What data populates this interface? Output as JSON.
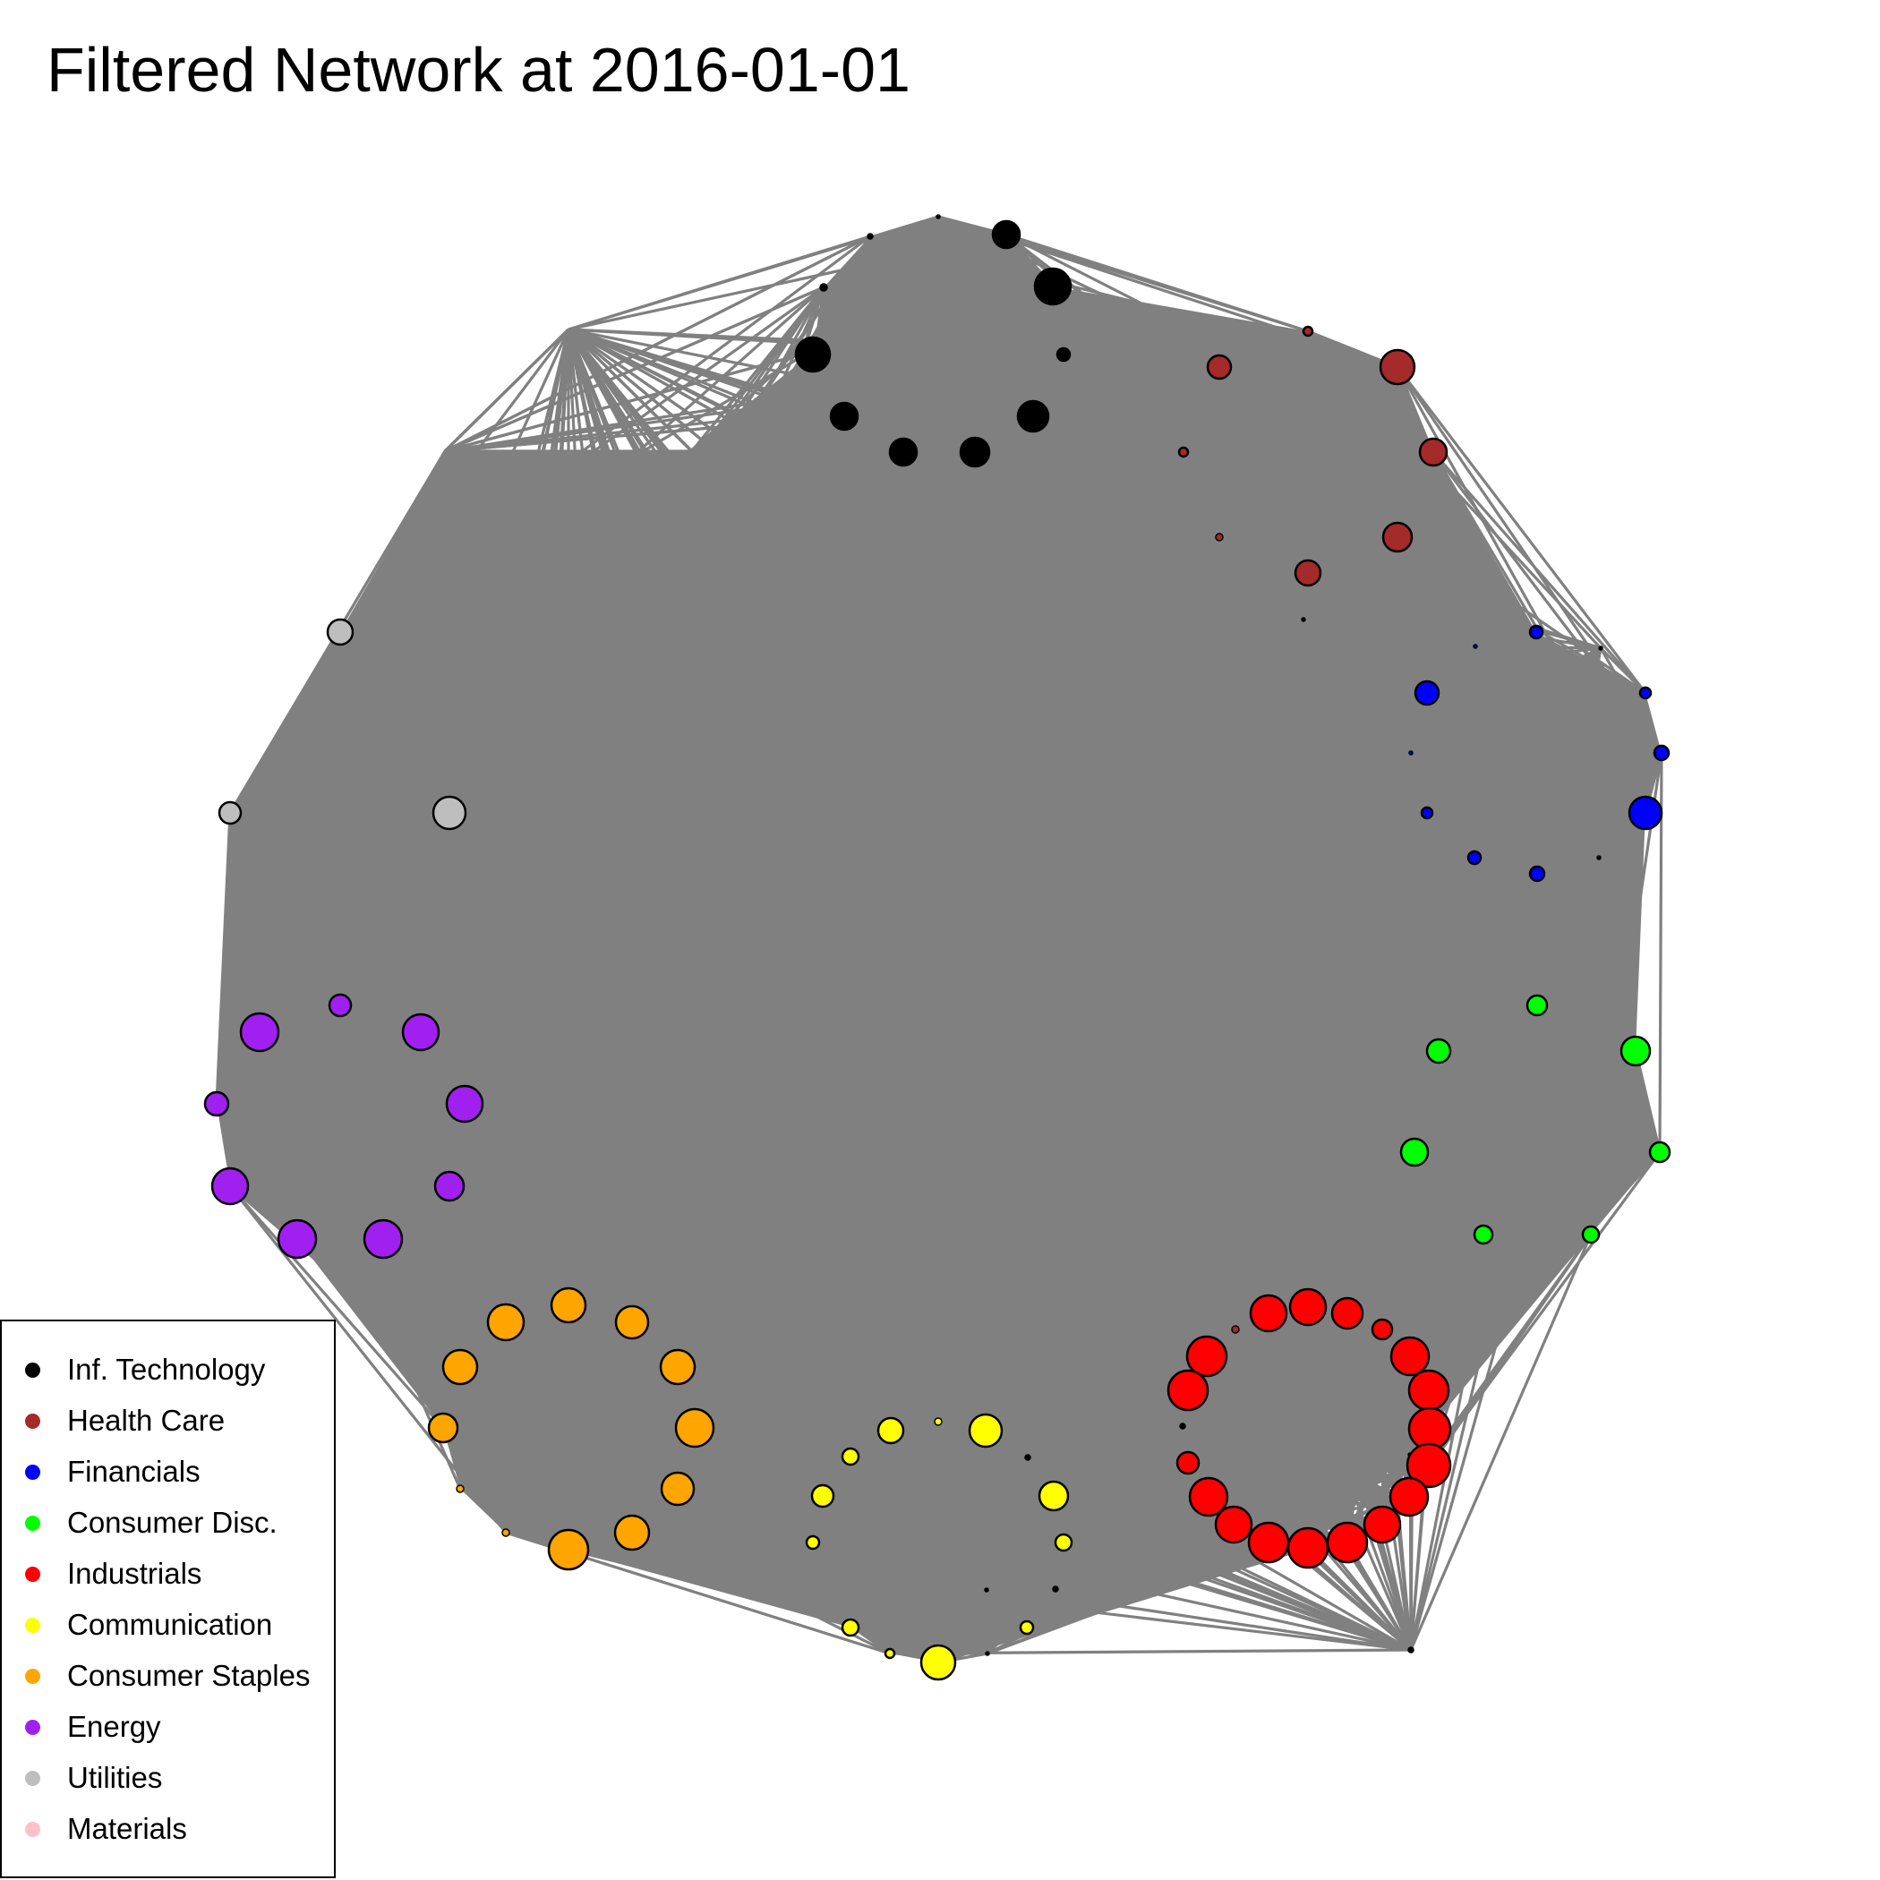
{
  "title": "Filtered Network at 2016-01-01",
  "edge_color": "#808080",
  "legend": {
    "items": [
      {
        "label": "Inf. Technology",
        "color": "#000000"
      },
      {
        "label": "Health Care",
        "color": "#a52a2a"
      },
      {
        "label": "Financials",
        "color": "#0000ff"
      },
      {
        "label": "Consumer Disc.",
        "color": "#00ff00"
      },
      {
        "label": "Industrials",
        "color": "#ff0000"
      },
      {
        "label": "Communication",
        "color": "#ffff00"
      },
      {
        "label": "Consumer Staples",
        "color": "#ffa500"
      },
      {
        "label": "Energy",
        "color": "#a020f0"
      },
      {
        "label": "Utilities",
        "color": "#bebebe"
      },
      {
        "label": "Materials",
        "color": "#ffc0cb"
      }
    ]
  }
}
